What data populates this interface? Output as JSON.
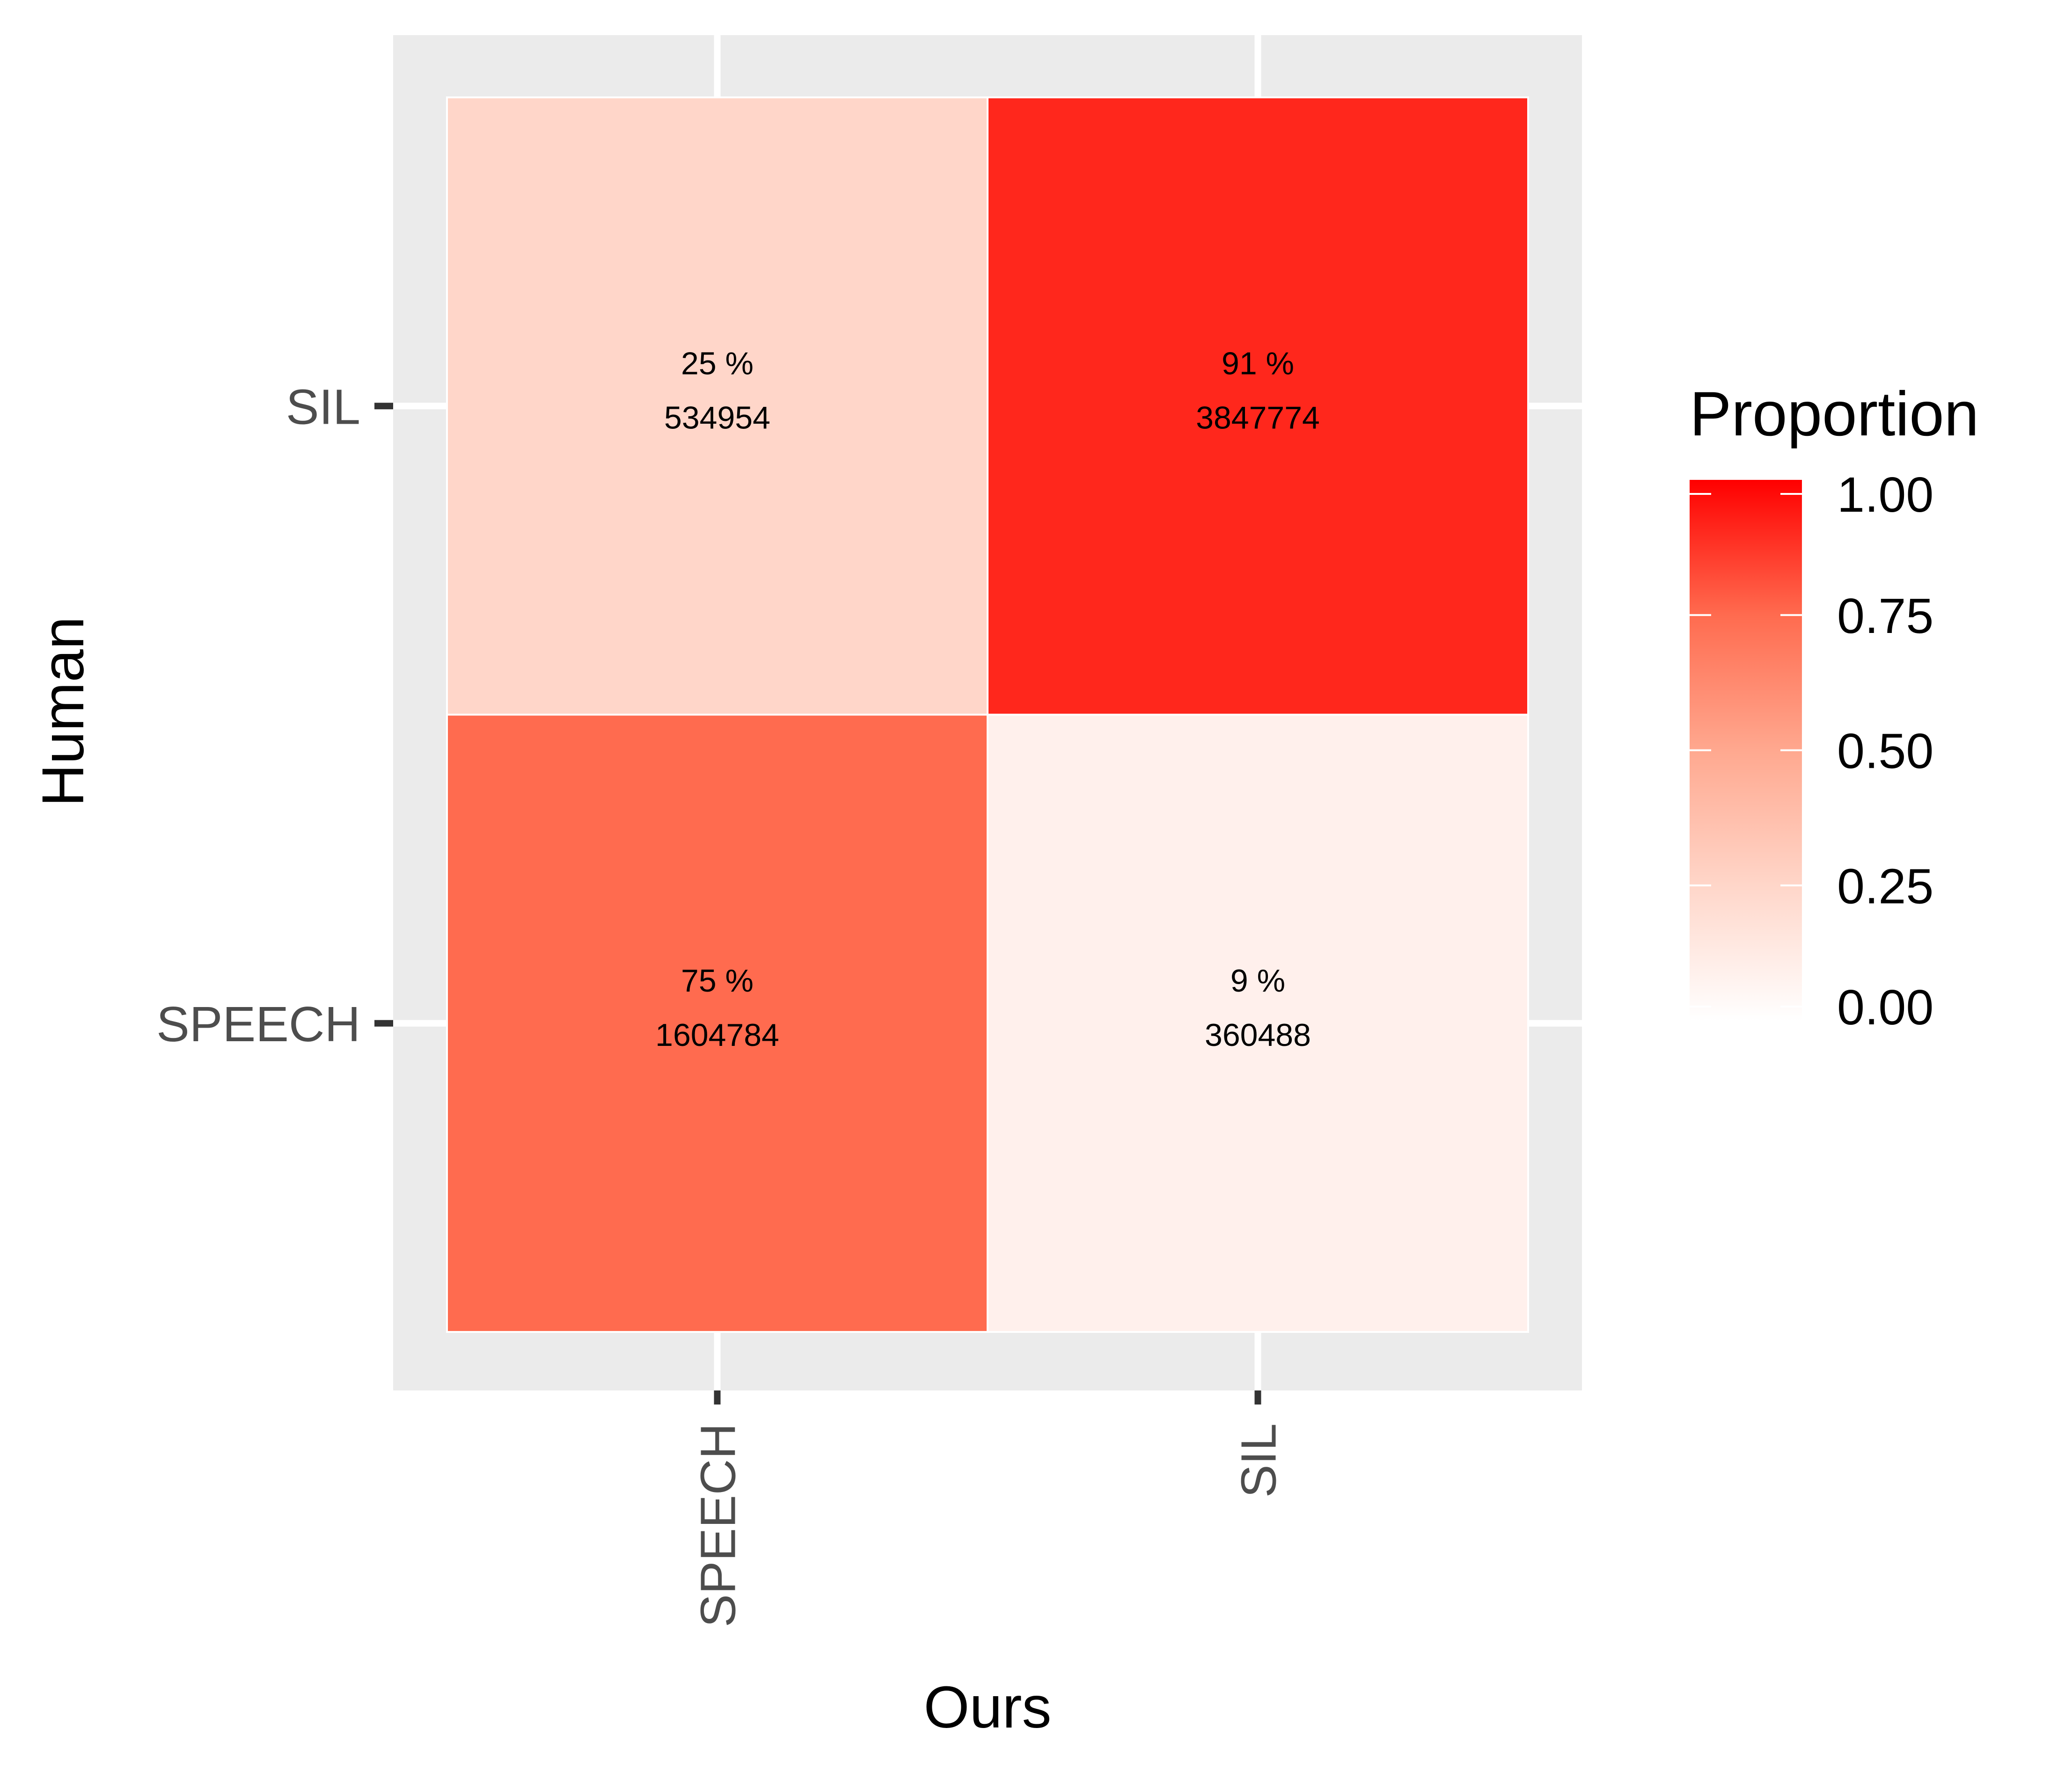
{
  "chart_data": {
    "type": "heatmap",
    "title": "",
    "xlabel": "Ours",
    "ylabel": "Human",
    "x_categories": [
      "SPEECH",
      "SIL"
    ],
    "y_categories": [
      "SIL",
      "SPEECH"
    ],
    "cells": [
      {
        "x": "SPEECH",
        "y": "SIL",
        "proportion": 0.25,
        "percent_label": "25 %",
        "count": "534954"
      },
      {
        "x": "SIL",
        "y": "SIL",
        "proportion": 0.91,
        "percent_label": "91 %",
        "count": "3847774"
      },
      {
        "x": "SPEECH",
        "y": "SPEECH",
        "proportion": 0.75,
        "percent_label": "75 %",
        "count": "1604784"
      },
      {
        "x": "SIL",
        "y": "SPEECH",
        "proportion": 0.09,
        "percent_label": "9 %",
        "count": "360488"
      }
    ],
    "legend": {
      "title": "Proportion",
      "placement": "right",
      "range": [
        0,
        1
      ],
      "ticks": [
        {
          "value": 1.0,
          "label": "1.00"
        },
        {
          "value": 0.75,
          "label": "0.75"
        },
        {
          "value": 0.5,
          "label": "0.50"
        },
        {
          "value": 0.25,
          "label": "0.25"
        },
        {
          "value": 0.0,
          "label": "0.00"
        }
      ],
      "color_low": "#ffffff",
      "color_high": "#ff0000"
    },
    "panel_background": "#ebebeb",
    "grid": true
  }
}
